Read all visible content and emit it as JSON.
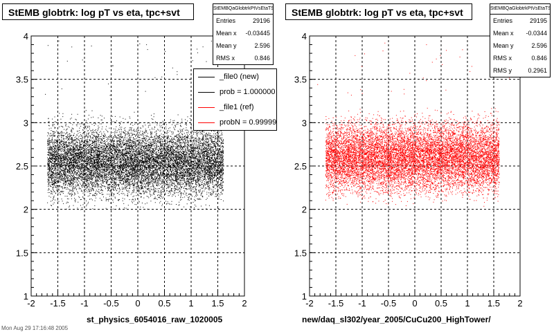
{
  "footer": {
    "text": "Mon Aug 29 17:16:48 2005"
  },
  "chart_data": [
    {
      "type": "scatter",
      "title": "StEMB globtrk: log pT vs eta, tpc+svt",
      "xlabel": "st_physics_6054016_raw_1020005",
      "xlim": [
        -2,
        2
      ],
      "ylim": [
        1,
        4
      ],
      "x_ticks": [
        "-2",
        "-1.5",
        "-1",
        "-0.5",
        "0",
        "0.5",
        "1",
        "1.5",
        "2"
      ],
      "y_ticks": [
        "1",
        "1.5",
        "2",
        "2.5",
        "3",
        "3.5",
        "4"
      ],
      "grid": true,
      "marker_color": "#000000",
      "data_region": {
        "x": [
          -1.7,
          1.6
        ],
        "y": [
          2.0,
          3.4
        ],
        "y_dense_center": 2.55
      },
      "stats": {
        "name": "StEMBQaGlobtrkPtVsEtaTS",
        "rows": [
          {
            "label": "Entries",
            "value": "29196"
          },
          {
            "label": "Mean x",
            "value": "-0.03445"
          },
          {
            "label": "Mean y",
            "value": "2.596"
          },
          {
            "label": "RMS x",
            "value": "0.846"
          }
        ]
      },
      "legend": {
        "placement": "top-right",
        "entries": [
          {
            "label": "_file0 (new)",
            "color": "#000000"
          },
          {
            "label": "prob = 1.000000",
            "color": "#000000"
          },
          {
            "label": "_file1 (ref)",
            "color": "#ff0000"
          },
          {
            "label": "probN = 0.999990",
            "color": "#ff0000"
          }
        ]
      }
    },
    {
      "type": "scatter",
      "title": "StEMB globtrk: log pT vs eta, tpc+svt",
      "xlabel": "new/daq_sl302/year_2005/CuCu200_HighTower/",
      "xlim": [
        -2,
        2
      ],
      "ylim": [
        1,
        4
      ],
      "x_ticks": [
        "-2",
        "-1.5",
        "-1",
        "-0.5",
        "0",
        "0.5",
        "1",
        "1.5",
        "2"
      ],
      "y_ticks": [
        "1",
        "1.5",
        "2",
        "2.5",
        "3",
        "3.5",
        "4"
      ],
      "grid": true,
      "marker_color": "#ff0000",
      "data_region": {
        "x": [
          -1.7,
          1.6
        ],
        "y": [
          2.0,
          3.4
        ],
        "y_dense_center": 2.6
      },
      "stats": {
        "name": "StEMBQaGlobtrkPtVsEtaTS",
        "rows": [
          {
            "label": "Entries",
            "value": "29195"
          },
          {
            "label": "Mean x",
            "value": "-0.0344"
          },
          {
            "label": "Mean y",
            "value": "2.596"
          },
          {
            "label": "RMS x",
            "value": "0.846"
          },
          {
            "label": "RMS y",
            "value": "0.2961"
          }
        ]
      }
    }
  ]
}
